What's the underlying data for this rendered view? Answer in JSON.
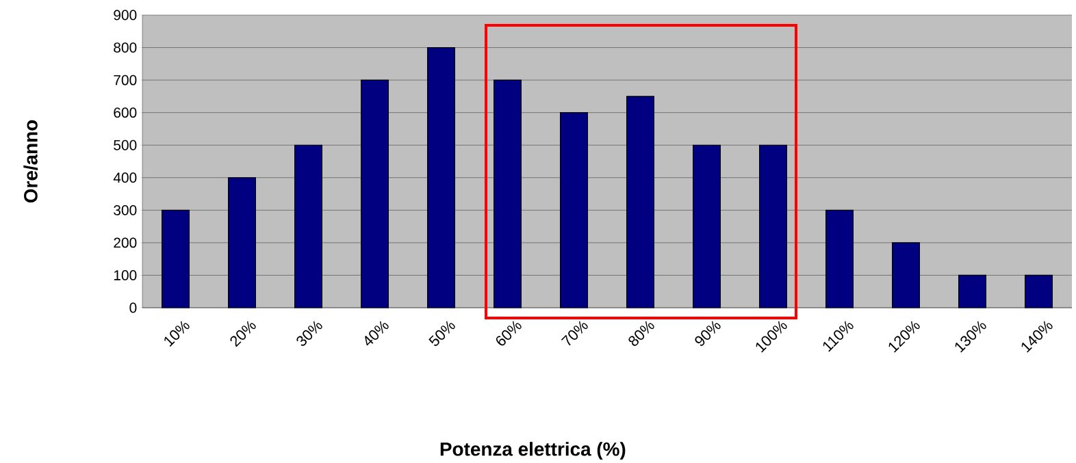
{
  "chart_data": {
    "type": "bar",
    "xlabel": "Potenza elettrica (%)",
    "ylabel": "Ore/anno",
    "categories": [
      "10%",
      "20%",
      "30%",
      "40%",
      "50%",
      "60%",
      "70%",
      "80%",
      "90%",
      "100%",
      "110%",
      "120%",
      "130%",
      "140%"
    ],
    "values": [
      300,
      400,
      500,
      700,
      800,
      700,
      600,
      650,
      500,
      500,
      300,
      200,
      100,
      100
    ],
    "color": "#000080",
    "ylim": [
      0,
      900
    ],
    "yticks": [
      0,
      100,
      200,
      300,
      400,
      500,
      600,
      700,
      800,
      900
    ],
    "grid": "y"
  }
}
